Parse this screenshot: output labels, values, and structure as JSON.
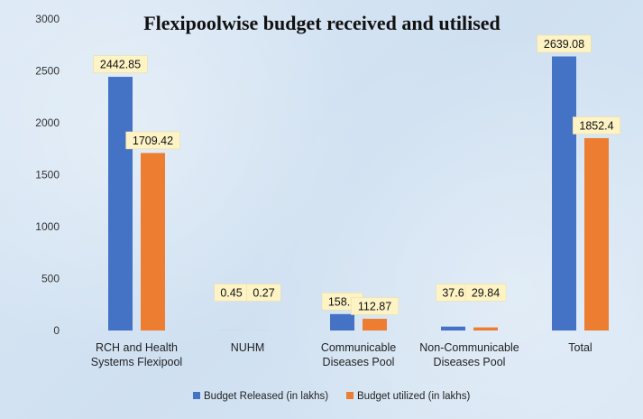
{
  "chart_data": {
    "type": "bar",
    "title": "Flexipoolwise budget received and utilised",
    "categories": [
      [
        "RCH and Health",
        "Systems Flexipool"
      ],
      [
        "NUHM"
      ],
      [
        "Communicable",
        "Diseases Pool"
      ],
      [
        "Non-Communicable",
        "Diseases Pool"
      ],
      [
        "Total"
      ]
    ],
    "series": [
      {
        "name": "Budget Released (in lakhs)",
        "color": "#4472c4",
        "values": [
          2442.85,
          0.45,
          158.2,
          37.6,
          2639.08
        ],
        "labels": [
          "2442.85",
          "0.45",
          "158.2",
          "37.6",
          "2639.08"
        ]
      },
      {
        "name": "Budget utilized (in lakhs)",
        "color": "#ed7d31",
        "values": [
          1709.42,
          0.27,
          112.87,
          29.84,
          1852.4
        ],
        "labels": [
          "1709.42",
          "0.27",
          "112.87",
          "29.84",
          "1852.4"
        ]
      }
    ],
    "yticks": [
      "0",
      "500",
      "1000",
      "1500",
      "2000",
      "2500",
      "3000"
    ],
    "ylim": [
      0,
      3000
    ],
    "xlabel": "",
    "ylabel": "",
    "grid": false,
    "legend_position": "bottom"
  }
}
